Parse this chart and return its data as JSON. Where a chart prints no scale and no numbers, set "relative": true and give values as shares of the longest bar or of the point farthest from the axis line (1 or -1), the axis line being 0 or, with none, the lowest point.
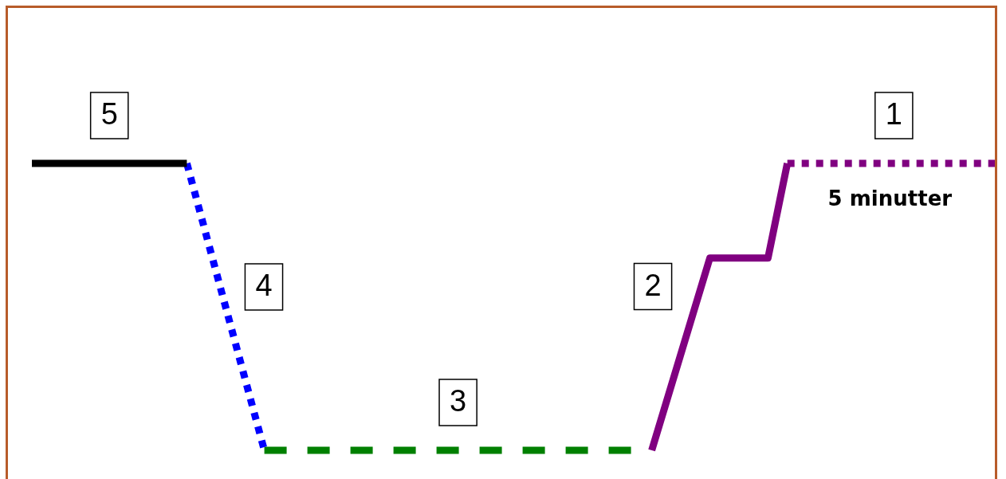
{
  "chart_data": {
    "type": "line",
    "relative": true,
    "grid": false,
    "legend": false,
    "tick_labels": false,
    "marker": "none",
    "categories": [
      null,
      null,
      null,
      null,
      null,
      null,
      null,
      null,
      null,
      null,
      null,
      null,
      null,
      null,
      null,
      null,
      null,
      null,
      null,
      null,
      null,
      null,
      null,
      null,
      null,
      null,
      null,
      null,
      null,
      null,
      null,
      null,
      null,
      null,
      null,
      null,
      null,
      null,
      null,
      null,
      null,
      null,
      null,
      null,
      null,
      null,
      null,
      null,
      null,
      null,
      null
    ],
    "series": [
      {
        "name": "5",
        "color": "#000000",
        "line_style": "solid",
        "values": [
          1,
          null,
          null,
          null,
          null,
          null,
          null,
          null,
          1,
          null,
          null,
          null,
          null,
          null,
          null,
          null,
          null,
          null,
          null,
          null,
          null,
          null,
          null,
          null,
          null,
          null,
          null,
          null,
          null,
          null,
          null,
          null,
          null,
          null,
          null,
          null,
          null,
          null,
          null,
          null,
          null,
          null,
          null,
          null,
          null,
          null,
          null,
          null,
          null,
          null,
          null
        ]
      },
      {
        "name": "4",
        "color": "#0000ff",
        "line_style": "dotted",
        "values": [
          null,
          null,
          null,
          null,
          null,
          null,
          null,
          null,
          1,
          null,
          null,
          null,
          0,
          null,
          null,
          null,
          null,
          null,
          null,
          null,
          null,
          null,
          null,
          null,
          null,
          null,
          null,
          null,
          null,
          null,
          null,
          null,
          null,
          null,
          null,
          null,
          null,
          null,
          null,
          null,
          null,
          null,
          null,
          null,
          null,
          null,
          null,
          null,
          null,
          null,
          null
        ]
      },
      {
        "name": "3",
        "color": "#008000",
        "line_style": "dashed",
        "values": [
          null,
          null,
          null,
          null,
          null,
          null,
          null,
          null,
          null,
          null,
          null,
          null,
          0,
          null,
          null,
          null,
          null,
          null,
          null,
          null,
          null,
          null,
          null,
          null,
          null,
          null,
          null,
          null,
          null,
          null,
          null,
          null,
          0,
          null,
          null,
          null,
          null,
          null,
          null,
          null,
          null,
          null,
          null,
          null,
          null,
          null,
          null,
          null,
          null,
          null,
          null
        ]
      },
      {
        "name": "2",
        "color": "#800080",
        "line_style": "solid",
        "values": [
          null,
          null,
          null,
          null,
          null,
          null,
          null,
          null,
          null,
          null,
          null,
          null,
          null,
          null,
          null,
          null,
          null,
          null,
          null,
          null,
          null,
          null,
          null,
          null,
          null,
          null,
          null,
          null,
          null,
          null,
          null,
          null,
          0,
          null,
          null,
          0.67,
          null,
          null,
          0.67,
          1,
          null,
          null,
          null,
          null,
          null,
          null,
          null,
          null,
          null,
          null,
          null
        ]
      },
      {
        "name": "1",
        "color": "#800080",
        "line_style": "dotted",
        "values": [
          null,
          null,
          null,
          null,
          null,
          null,
          null,
          null,
          null,
          null,
          null,
          null,
          null,
          null,
          null,
          null,
          null,
          null,
          null,
          null,
          null,
          null,
          null,
          null,
          null,
          null,
          null,
          null,
          null,
          null,
          null,
          null,
          null,
          null,
          null,
          null,
          null,
          null,
          null,
          1,
          null,
          null,
          null,
          null,
          null,
          null,
          null,
          null,
          null,
          null,
          1
        ]
      }
    ],
    "annotations": [
      "5 minutter"
    ]
  }
}
